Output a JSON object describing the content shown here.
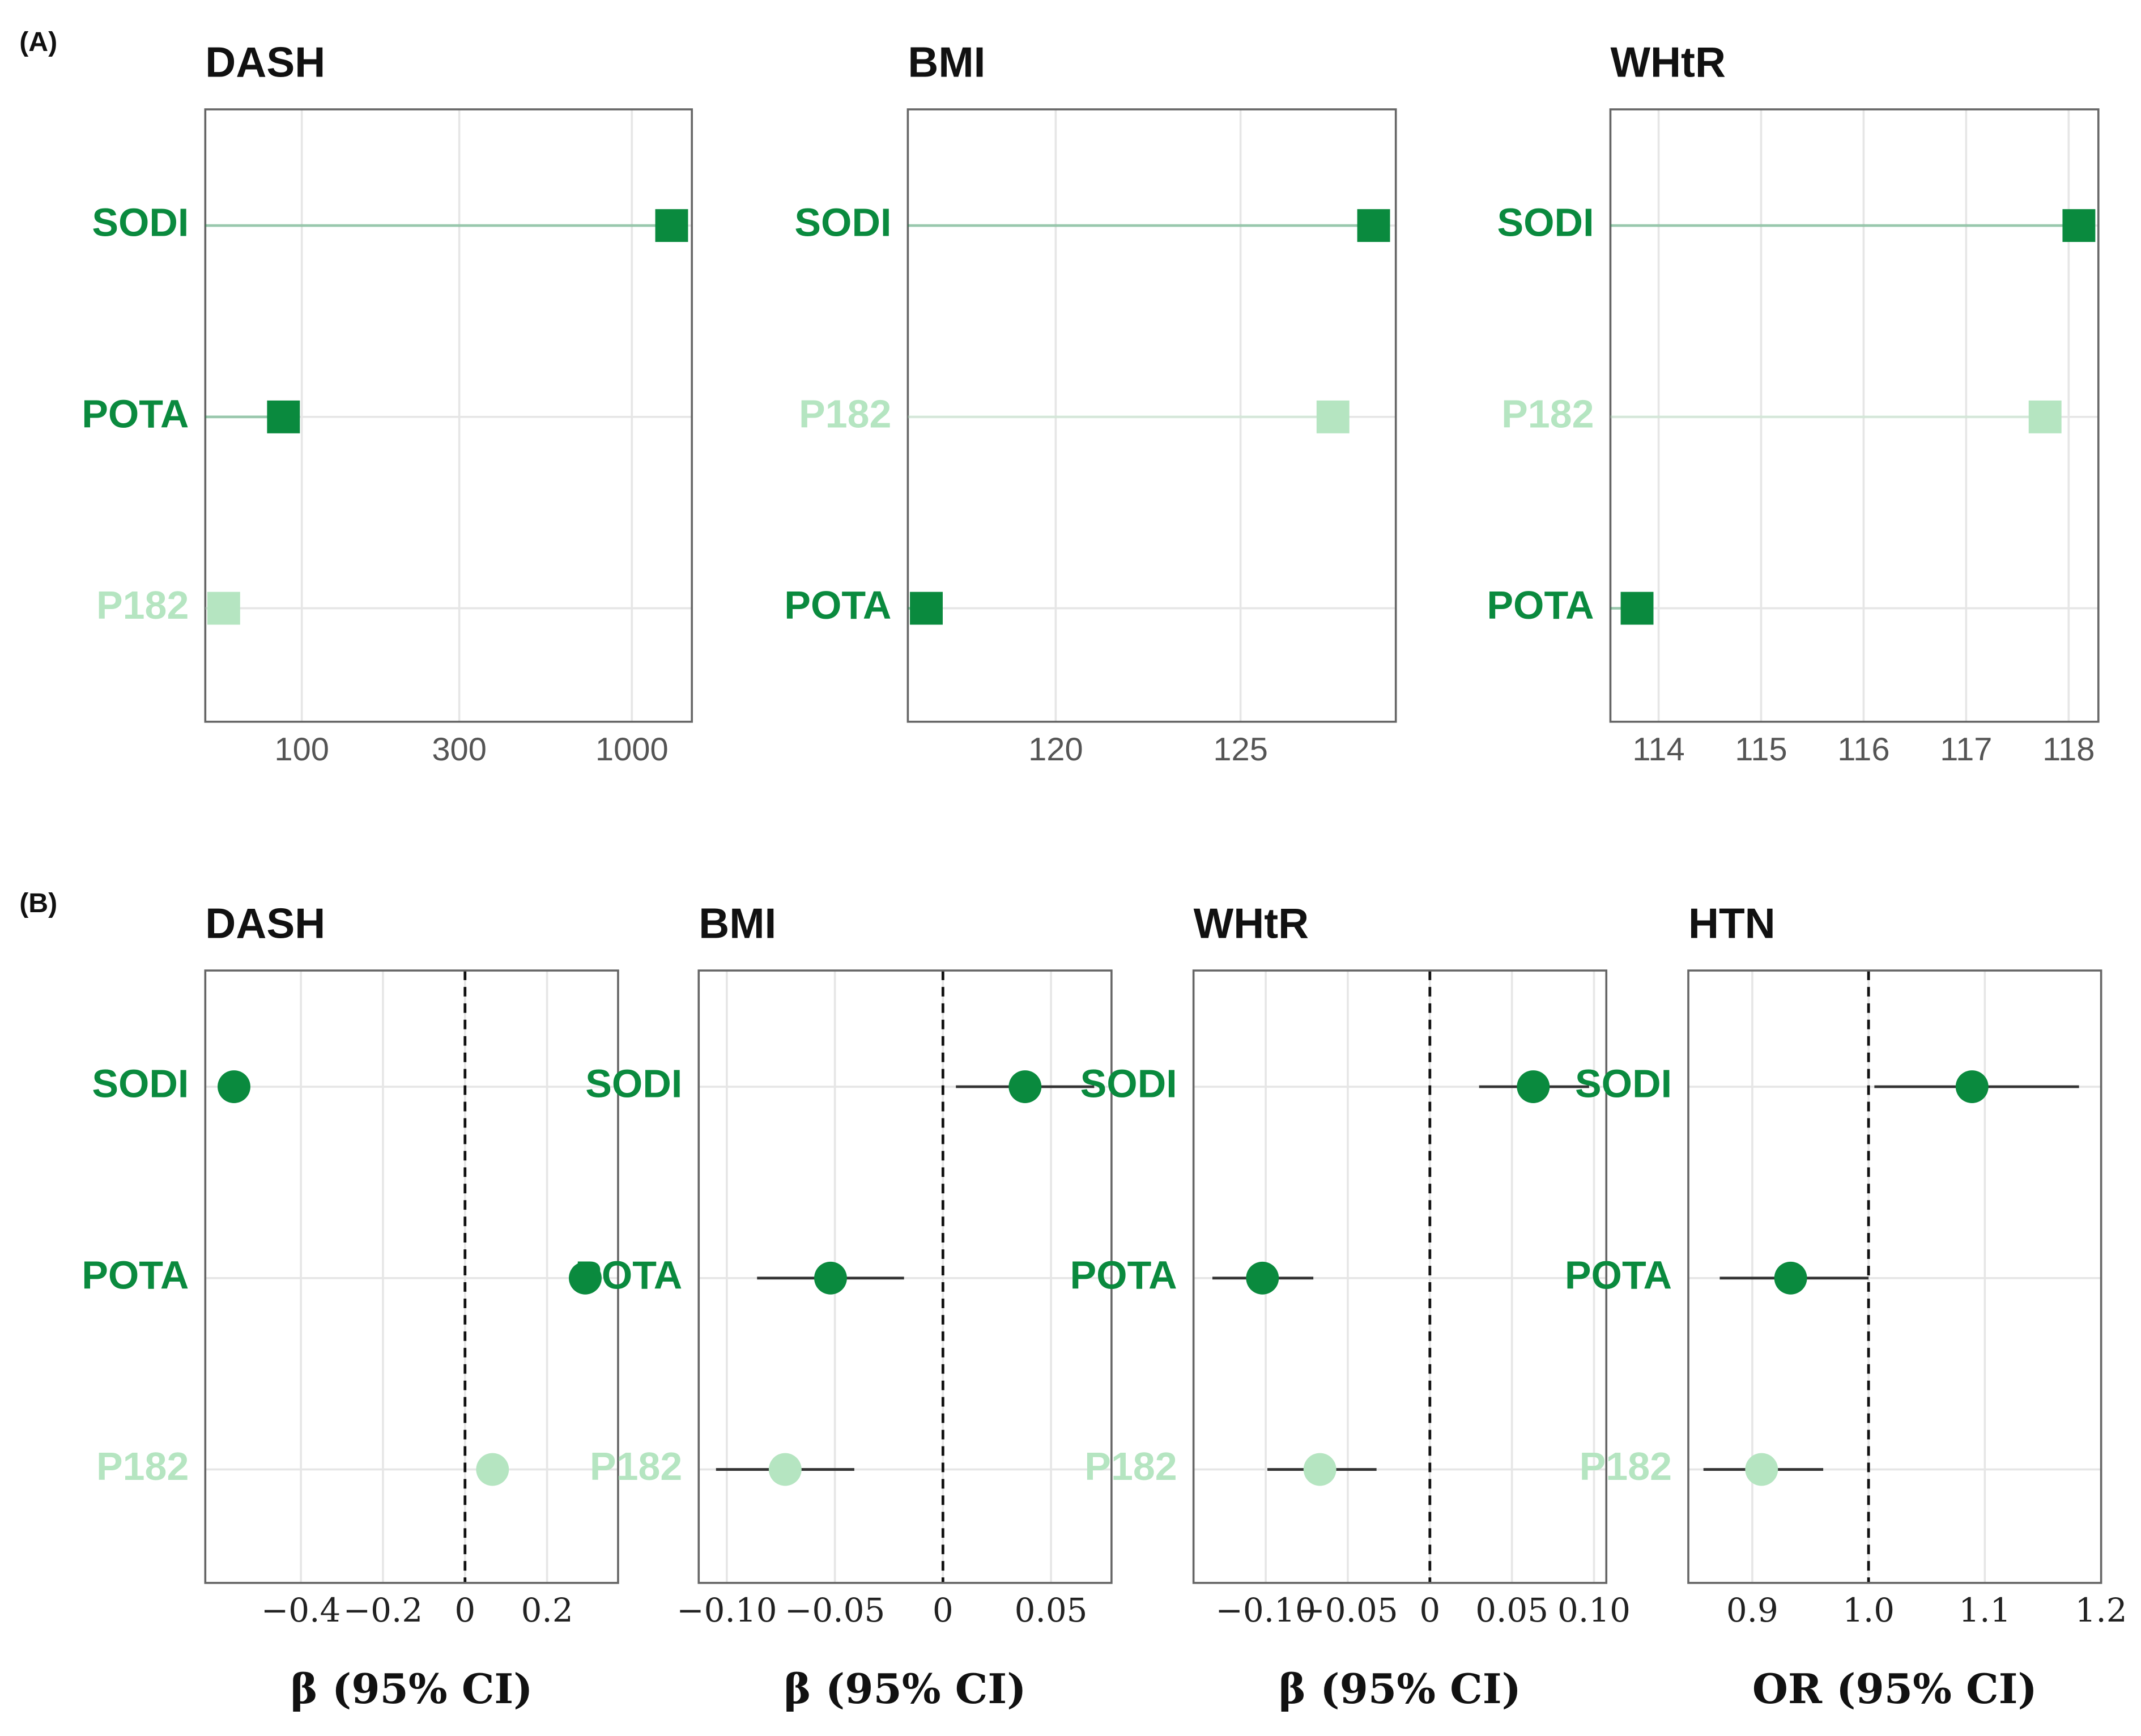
{
  "panel_labels": [
    "(A)",
    "(B)"
  ],
  "chart_data": [
    {
      "type": "dot",
      "title": "DASH",
      "categories": [
        "SODI",
        "POTA",
        "P182"
      ],
      "values": [
        1320,
        88,
        58
      ],
      "colors": [
        "#0a8a3e",
        "#0a8a3e",
        "#b5e5c1"
      ],
      "xscale": "log",
      "xlim": [
        51,
        1520
      ],
      "xticks": [
        100,
        300,
        1000
      ],
      "grid": true
    },
    {
      "type": "dot",
      "title": "BMI",
      "categories": [
        "SODI",
        "P182",
        "POTA"
      ],
      "values": [
        128.6,
        127.5,
        116.5
      ],
      "colors": [
        "#0a8a3e",
        "#b5e5c1",
        "#0a8a3e"
      ],
      "xscale": "linear",
      "xlim": [
        116,
        129.2
      ],
      "xticks": [
        120,
        125
      ],
      "grid": true
    },
    {
      "type": "dot",
      "title": "WHtR",
      "categories": [
        "SODI",
        "P182",
        "POTA"
      ],
      "values": [
        118.1,
        117.77,
        113.79
      ],
      "colors": [
        "#0a8a3e",
        "#b5e5c1",
        "#0a8a3e"
      ],
      "xscale": "linear",
      "xlim": [
        113.53,
        118.29
      ],
      "xticks": [
        114,
        115,
        116,
        117,
        118
      ],
      "grid": true
    },
    {
      "type": "forest",
      "title": "DASH",
      "x_label": "β (95% CI)",
      "categories": [
        "SODI",
        "POTA",
        "P182"
      ],
      "values": [
        -0.563,
        0.293,
        0.067
      ],
      "lower": [
        -0.57,
        0.286,
        0.06
      ],
      "upper": [
        -0.556,
        0.3,
        0.074
      ],
      "colors": [
        "#0a8a3e",
        "#0a8a3e",
        "#b5e5c1"
      ],
      "ref_line": 0,
      "xlim": [
        -0.633,
        0.373
      ],
      "xticks": [
        {
          "value": -0.4,
          "label": "−0.4"
        },
        {
          "value": -0.2,
          "label": "−0.2"
        },
        0,
        0.2
      ],
      "grid": true
    },
    {
      "type": "forest",
      "title": "BMI",
      "x_label": "β (95% CI)",
      "categories": [
        "SODI",
        "POTA",
        "P182"
      ],
      "values": [
        0.038,
        -0.052,
        -0.073
      ],
      "lower": [
        0.006,
        -0.086,
        -0.105
      ],
      "upper": [
        0.07,
        -0.018,
        -0.041
      ],
      "colors": [
        "#0a8a3e",
        "#0a8a3e",
        "#b5e5c1"
      ],
      "ref_line": 0,
      "xlim": [
        -0.113,
        0.078
      ],
      "xticks": [
        {
          "value": -0.1,
          "label": "−0.10"
        },
        {
          "value": -0.05,
          "label": "−0.05"
        },
        0,
        0.05
      ],
      "grid": true
    },
    {
      "type": "forest",
      "title": "WHtR",
      "x_label": "β (95% CI)",
      "categories": [
        "SODI",
        "POTA",
        "P182"
      ],
      "values": [
        0.063,
        -0.102,
        -0.067
      ],
      "lower": [
        0.03,
        -0.1325,
        -0.099
      ],
      "upper": [
        0.097,
        -0.071,
        -0.0325
      ],
      "colors": [
        "#0a8a3e",
        "#0a8a3e",
        "#b5e5c1"
      ],
      "ref_line": 0,
      "xlim": [
        -0.144,
        0.1075
      ],
      "xticks": [
        {
          "value": -0.1,
          "label": "−0.10"
        },
        {
          "value": -0.05,
          "label": "−0.05"
        },
        0,
        0.05,
        {
          "value": 0.1,
          "label": "0.10"
        }
      ],
      "grid": true
    },
    {
      "type": "forest",
      "title": "HTN",
      "x_label": "OR (95% CI)",
      "categories": [
        "SODI",
        "POTA",
        "P182"
      ],
      "values": [
        1.089,
        0.933,
        0.908
      ],
      "lower": [
        1.005,
        0.872,
        0.858
      ],
      "upper": [
        1.181,
        1.0,
        0.961
      ],
      "colors": [
        "#0a8a3e",
        "#0a8a3e",
        "#b5e5c1"
      ],
      "ref_line": 1,
      "xlim": [
        0.845,
        1.2
      ],
      "xticks": [
        0.9,
        {
          "value": 1,
          "label": "1.0"
        },
        1.1,
        1.2
      ],
      "grid": true
    }
  ]
}
